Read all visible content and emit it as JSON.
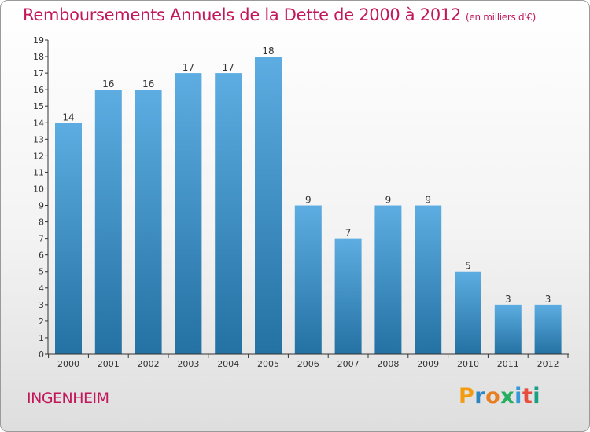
{
  "title": "Remboursements Annuels de la Dette de 2000 à 2012",
  "unit": "(en milliers d'€)",
  "commune": "INGENHEIM",
  "brand": {
    "letters": [
      "P",
      "r",
      "o",
      "x",
      "i",
      "t",
      "i"
    ],
    "colors": [
      "#f39c12",
      "#2e86c1",
      "#e67e22",
      "#27ae60",
      "#3498db",
      "#e74c3c",
      "#16a085"
    ]
  },
  "colors": {
    "title": "#c2185b",
    "bar_top": "#5dade2",
    "bar_bottom": "#2471a3",
    "axis": "#333333"
  },
  "chart_data": {
    "type": "bar",
    "title": "Remboursements Annuels de la Dette de 2000 à 2012",
    "xlabel": "",
    "ylabel": "",
    "categories": [
      "2000",
      "2001",
      "2002",
      "2003",
      "2004",
      "2005",
      "2006",
      "2007",
      "2008",
      "2009",
      "2010",
      "2011",
      "2012"
    ],
    "values": [
      14,
      16,
      16,
      17,
      17,
      18,
      9,
      7,
      9,
      9,
      5,
      3,
      3
    ],
    "ylim": [
      0,
      19
    ],
    "yticks": [
      "0",
      "1",
      "2",
      "3",
      "4",
      "5",
      "6",
      "7",
      "8",
      "9",
      "10",
      "11",
      "12",
      "13",
      "14",
      "15",
      "16",
      "17",
      "18",
      "19"
    ],
    "grid": false,
    "legend": "none"
  }
}
